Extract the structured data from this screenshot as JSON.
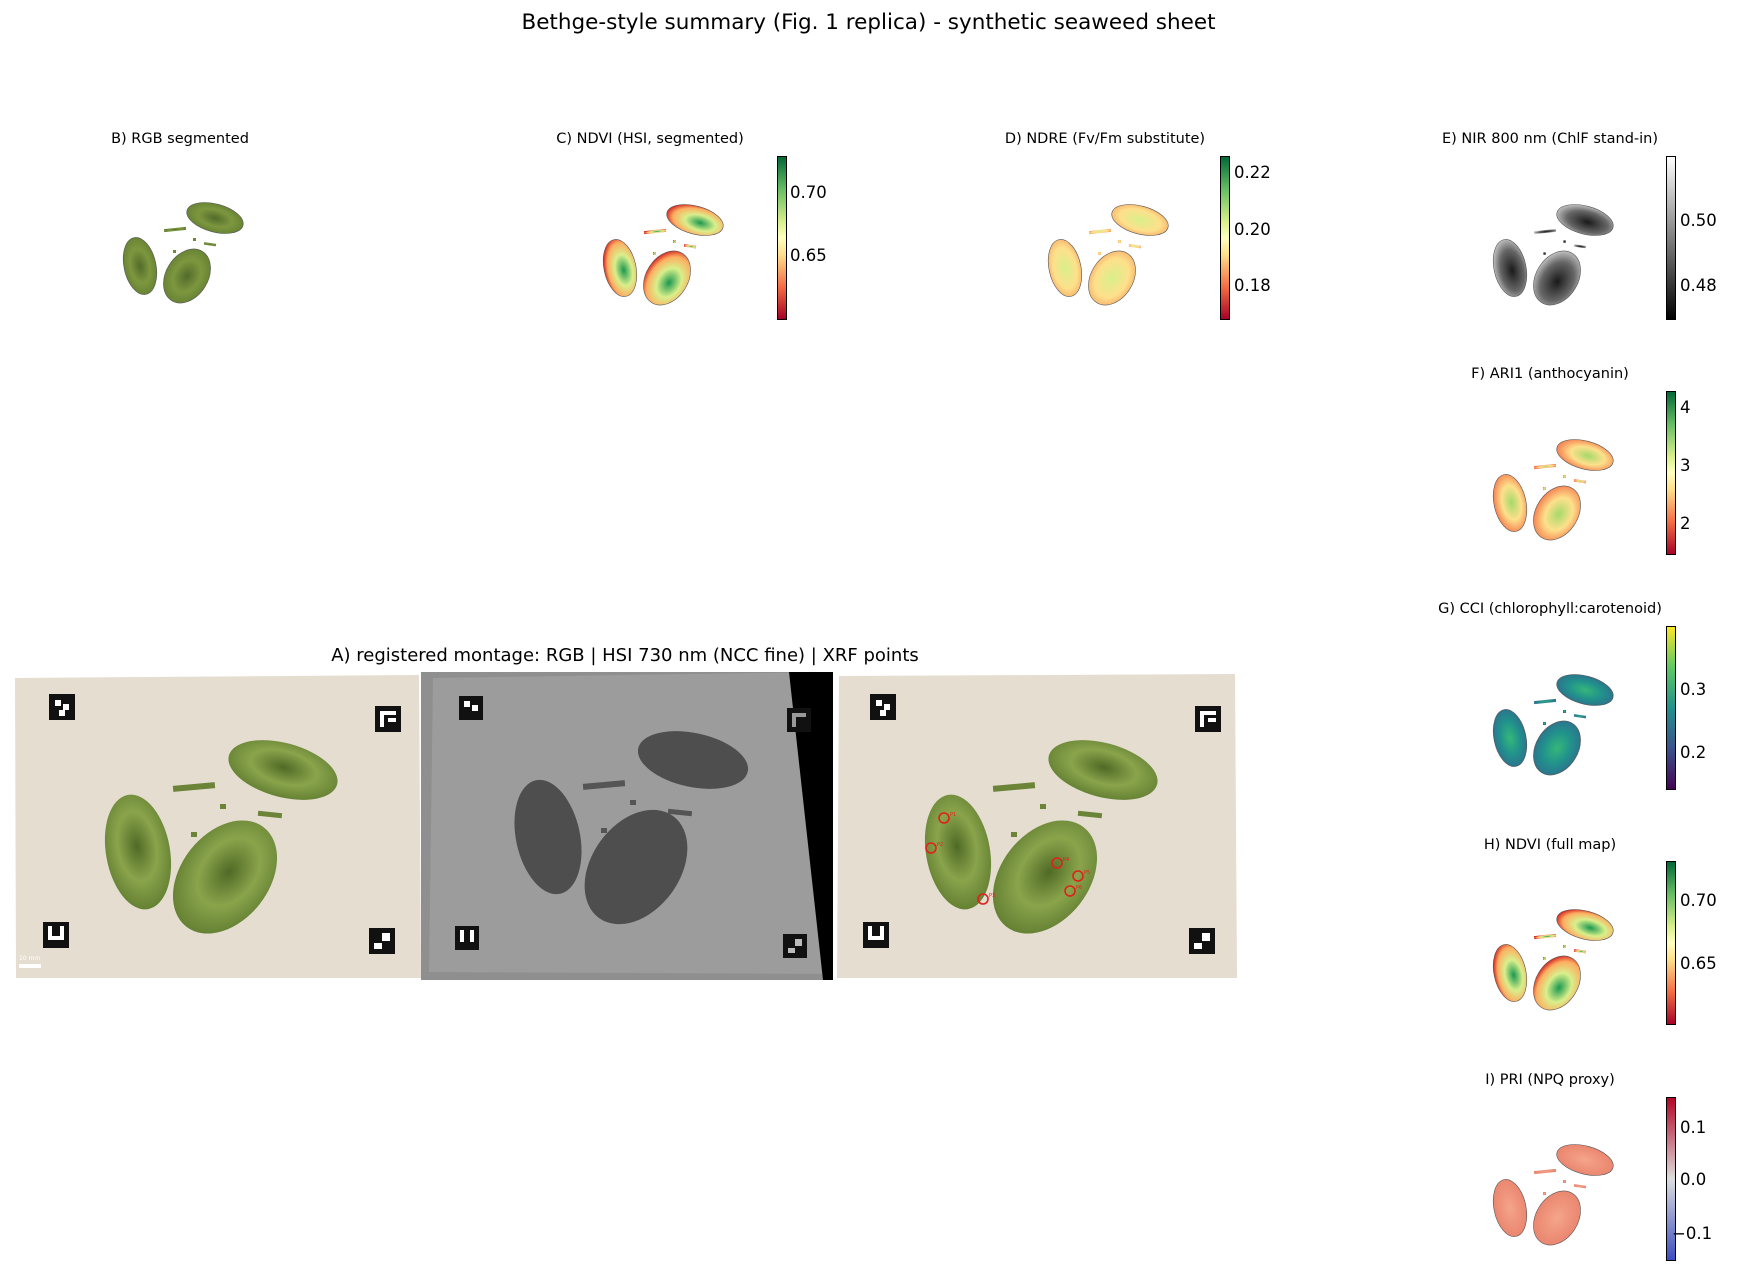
{
  "suptitle": "Bethge-style summary (Fig. 1 replica) - synthetic seaweed sheet",
  "panels": {
    "B": {
      "title": "B) RGB segmented"
    },
    "C": {
      "title": "C) NDVI (HSI, segmented)",
      "colormap": "RdYlGn",
      "ticks": [
        "0.70",
        "0.65"
      ]
    },
    "D": {
      "title": "D) NDRE  (Fv/Fm substitute)",
      "colormap": "RdYlGn",
      "ticks": [
        "0.22",
        "0.20",
        "0.18"
      ]
    },
    "E": {
      "title": "E) NIR 800 nm (ChlF stand-in)",
      "colormap": "gray",
      "ticks": [
        "0.50",
        "0.48"
      ]
    },
    "F": {
      "title": "F) ARI1 (anthocyanin)",
      "colormap": "RdYlGn",
      "ticks": [
        "4",
        "3",
        "2"
      ]
    },
    "G": {
      "title": "G) CCI (chlorophyll:carotenoid)",
      "colormap": "viridis",
      "ticks": [
        "0.3",
        "0.2"
      ]
    },
    "H": {
      "title": "H) NDVI (full map)",
      "colormap": "RdYlGn",
      "ticks": [
        "0.70",
        "0.65"
      ]
    },
    "I": {
      "title": "I) PRI (NPQ proxy)",
      "colormap": "coolwarm",
      "ticks": [
        "0.1",
        "0.0",
        "−0.1"
      ]
    }
  },
  "montage": {
    "title": "A) registered montage: RGB | HSI 730 nm (NCC fine) | XRF points",
    "scale_bar_label": "10 mm",
    "xrf_point_labels": [
      "P1",
      "P2",
      "P3",
      "P4",
      "P5",
      "P6"
    ]
  },
  "colors": {
    "background_sheet": "#e4ddd0",
    "seaweed_green": "#6f8a3a",
    "xrf_marker": "#e0201a",
    "hsi_gray": "#999999"
  }
}
